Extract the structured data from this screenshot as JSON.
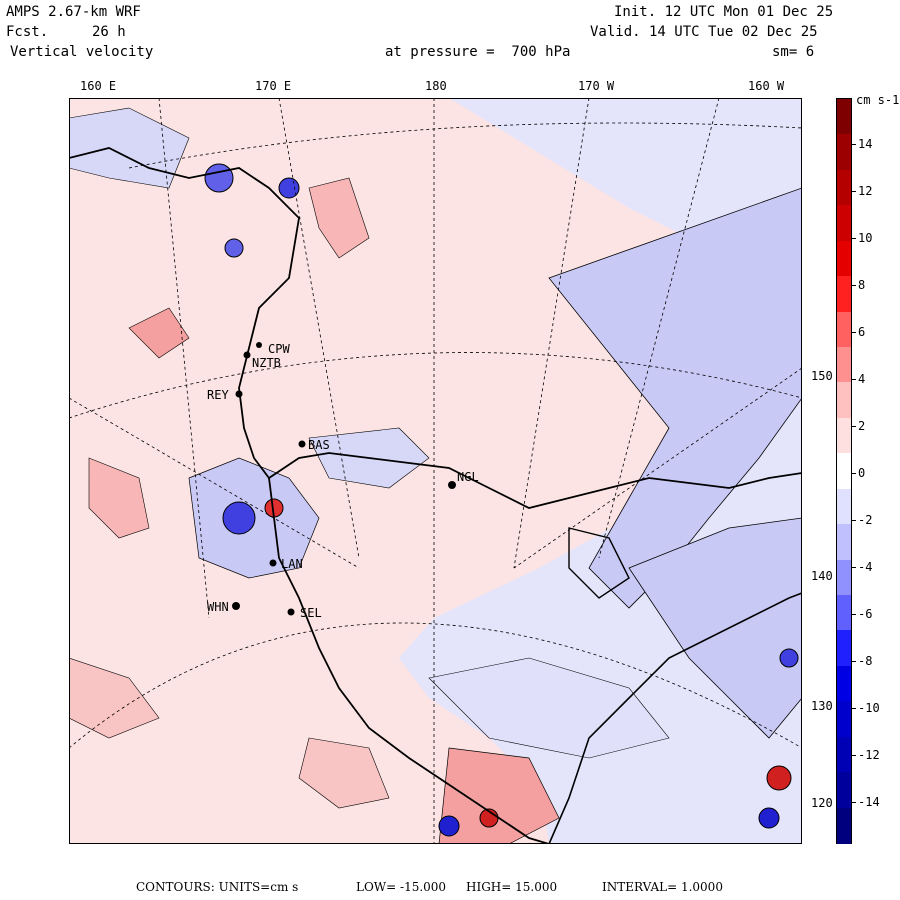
{
  "header": {
    "model": "AMPS 2.67-km WRF",
    "fcst_label": "Fcst.",
    "fcst_value": "26 h",
    "field": "Vertical velocity",
    "level": "at pressure =  700 hPa",
    "init": "Init. 12 UTC Mon 01 Dec 25",
    "valid": "Valid. 14 UTC Tue 02 Dec 25",
    "smoothing": "sm= 6"
  },
  "top_longitudes": [
    "160 E",
    "170 E",
    "180",
    "170 W",
    "160 W"
  ],
  "right_longitudes": [
    "150 W",
    "140 W",
    "130 W",
    "120 W"
  ],
  "stations": [
    "CPW",
    "NZTB",
    "REY",
    "BAS",
    "NGL",
    "LAN",
    "WHN",
    "SEL"
  ],
  "colorbar": {
    "units": "cm s-1",
    "labels": [
      "14",
      "12",
      "10",
      "8",
      "6",
      "4",
      "2",
      "0",
      "-2",
      "-4",
      "-6",
      "-8",
      "-10",
      "-12",
      "-14"
    ],
    "colors": [
      "#7f0000",
      "#9c0000",
      "#b50000",
      "#cc0000",
      "#e50000",
      "#ff2020",
      "#ff6060",
      "#ff9090",
      "#ffc0c0",
      "#ffe0e0",
      "#ffffff",
      "#e0e0ff",
      "#c0c0ff",
      "#9090ff",
      "#6060ff",
      "#2020ff",
      "#0000e5",
      "#0000cc",
      "#0000b5",
      "#00009c",
      "#00007f"
    ]
  },
  "footer": {
    "contours": "CONTOURS:  UNITS=cm s",
    "low": "LOW= -15.000",
    "high": "HIGH=  15.000",
    "interval": "INTERVAL=   1.0000"
  }
}
